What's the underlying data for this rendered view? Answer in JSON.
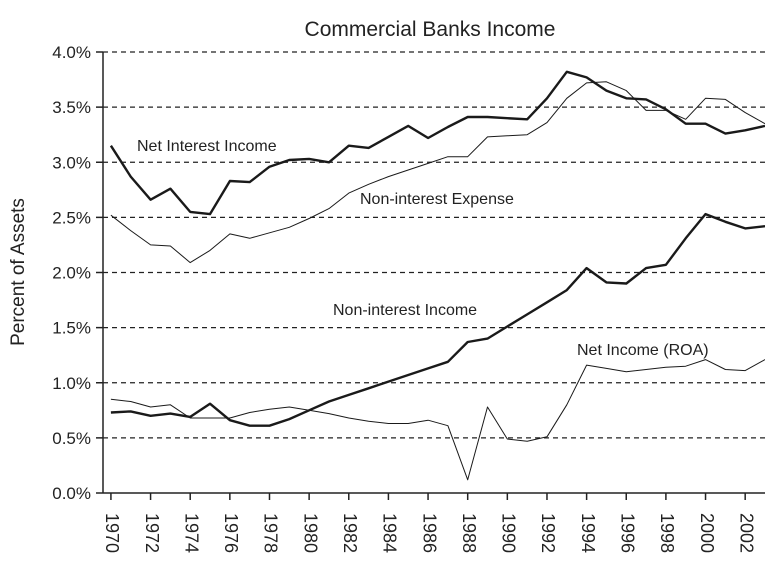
{
  "chart_data": {
    "type": "line",
    "title": "Commercial Banks Income",
    "y_label": "Percent of Assets",
    "x": [
      1970,
      1971,
      1972,
      1973,
      1974,
      1975,
      1976,
      1977,
      1978,
      1979,
      1980,
      1981,
      1982,
      1983,
      1984,
      1985,
      1986,
      1987,
      1988,
      1989,
      1990,
      1991,
      1992,
      1993,
      1994,
      1995,
      1996,
      1997,
      1998,
      1999,
      2000,
      2001,
      2002,
      2003
    ],
    "xlim": [
      1969.6,
      2003.0
    ],
    "xticks": [
      1970,
      1972,
      1974,
      1976,
      1978,
      1980,
      1982,
      1984,
      1986,
      1988,
      1990,
      1992,
      1994,
      1996,
      1998,
      2000,
      2002
    ],
    "ylim": [
      0,
      4
    ],
    "yticks": [
      {
        "value": 0,
        "label": "0.0%"
      },
      {
        "value": 0.5,
        "label": "0.5%"
      },
      {
        "value": 1,
        "label": "1.0%"
      },
      {
        "value": 1.5,
        "label": "1.5%"
      },
      {
        "value": 2,
        "label": "2.0%"
      },
      {
        "value": 2.5,
        "label": "2.5%"
      },
      {
        "value": 3,
        "label": "3.0%"
      },
      {
        "value": 3.5,
        "label": "3.5%"
      },
      {
        "value": 4,
        "label": "4.0%"
      }
    ],
    "grid": true,
    "series": [
      {
        "name": "Net Interest Income",
        "color": "#1a1a1a",
        "values": [
          3.15,
          2.87,
          2.66,
          2.76,
          2.55,
          2.53,
          2.83,
          2.82,
          2.96,
          3.02,
          3.03,
          3.0,
          3.15,
          3.13,
          3.23,
          3.33,
          3.22,
          3.32,
          3.41,
          3.41,
          3.4,
          3.39,
          3.58,
          3.82,
          3.77,
          3.65,
          3.58,
          3.57,
          3.48,
          3.35,
          3.35,
          3.26,
          3.29,
          3.33
        ]
      },
      {
        "name": "Non-interest Expense",
        "color": "#1a1a1a",
        "values": [
          2.52,
          2.38,
          2.25,
          2.24,
          2.09,
          2.2,
          2.35,
          2.31,
          2.36,
          2.41,
          2.49,
          2.58,
          2.72,
          2.8,
          2.87,
          2.93,
          2.99,
          3.05,
          3.05,
          3.23,
          3.24,
          3.25,
          3.36,
          3.58,
          3.72,
          3.73,
          3.65,
          3.47,
          3.47,
          3.39,
          3.58,
          3.57,
          3.45,
          3.35
        ]
      },
      {
        "name": "Non-interest Income",
        "color": "#1a1a1a",
        "values": [
          0.73,
          0.74,
          0.7,
          0.72,
          0.69,
          0.81,
          0.66,
          0.61,
          0.61,
          0.67,
          0.75,
          0.83,
          0.89,
          0.95,
          1.01,
          1.07,
          1.13,
          1.19,
          1.37,
          1.4,
          1.51,
          1.62,
          1.73,
          1.84,
          2.04,
          1.91,
          1.9,
          2.04,
          2.07,
          2.31,
          2.53,
          2.46,
          2.4,
          2.42
        ]
      },
      {
        "name": "Net Income (ROA)",
        "color": "#1a1a1a",
        "values": [
          0.85,
          0.83,
          0.78,
          0.8,
          0.68,
          0.68,
          0.68,
          0.73,
          0.76,
          0.78,
          0.75,
          0.72,
          0.68,
          0.65,
          0.63,
          0.63,
          0.66,
          0.61,
          0.12,
          0.78,
          0.49,
          0.47,
          0.51,
          0.8,
          1.16,
          1.13,
          1.1,
          1.12,
          1.14,
          1.15,
          1.21,
          1.12,
          1.11,
          1.21
        ]
      }
    ]
  }
}
